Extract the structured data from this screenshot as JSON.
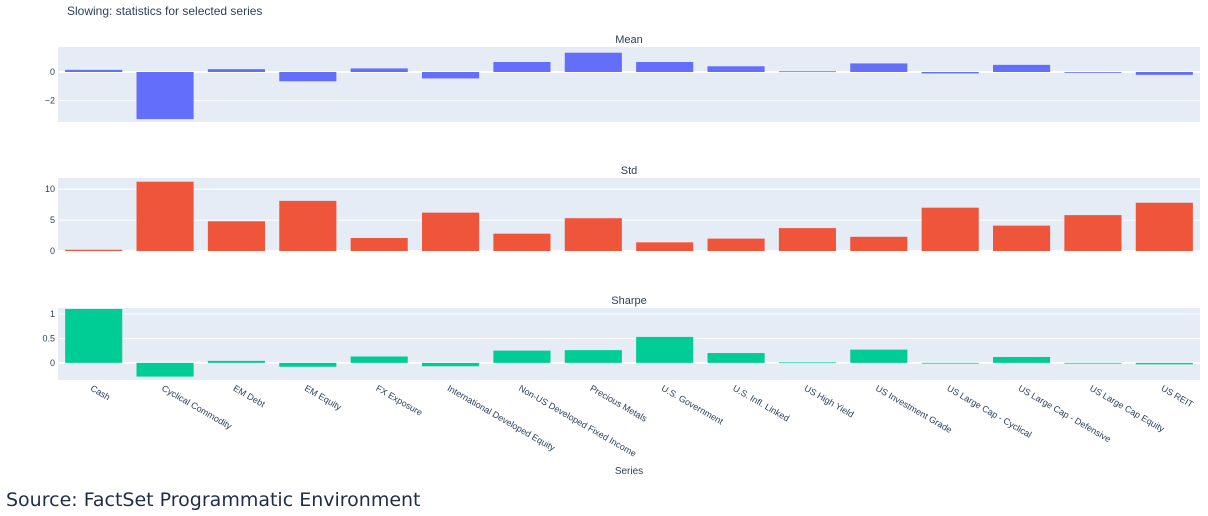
{
  "figure": {
    "title": "Slowing: statistics for selected series",
    "source": "Source: FactSet Programmatic Environment"
  },
  "colors": {
    "mean": "#636efa",
    "std": "#ef553b",
    "sharpe": "#00cc96",
    "plot_bg": "#e5ecf6",
    "text": "#2a3f5f"
  },
  "chart_data": {
    "type": "bar",
    "layout": "3 stacked subplots sharing x-axis",
    "categories": [
      "Cash",
      "Cyclical Commodity",
      "EM Debt",
      "EM Equity",
      "FX Exposure",
      "International Developed Equity",
      "Non-US Developed Fixed Income",
      "Precious Metals",
      "U.S. Government",
      "U.S. Infl. Linked",
      "US High Yield",
      "US Investment Grade",
      "US Large Cap - Cyclical",
      "US Large Cap - Defensive",
      "US Large Cap Equity",
      "US REIT"
    ],
    "xlabel": "Series",
    "grid": true,
    "legend": "none",
    "subplots": [
      {
        "key": "mean",
        "title": "Mean",
        "values": [
          0.15,
          -3.3,
          0.2,
          -0.65,
          0.25,
          -0.45,
          0.7,
          1.35,
          0.7,
          0.4,
          0.05,
          0.6,
          -0.1,
          0.5,
          -0.05,
          -0.2
        ],
        "ylim": [
          -3.5,
          1.75
        ],
        "ticks": [
          -2,
          0
        ],
        "tick_labels": [
          "−2",
          "0"
        ]
      },
      {
        "key": "std",
        "title": "Std",
        "values": [
          0.2,
          11.2,
          4.8,
          8.1,
          2.1,
          6.2,
          2.8,
          5.3,
          1.4,
          2.0,
          3.7,
          2.3,
          7.0,
          4.1,
          5.8,
          7.8
        ],
        "ylim": [
          0,
          11.8
        ],
        "ticks": [
          0,
          5,
          10
        ],
        "tick_labels": [
          "0",
          "5",
          "10"
        ]
      },
      {
        "key": "sharpe",
        "title": "Sharpe",
        "values": [
          1.1,
          -0.28,
          0.04,
          -0.08,
          0.13,
          -0.07,
          0.25,
          0.26,
          0.53,
          0.2,
          0.01,
          0.27,
          -0.01,
          0.12,
          -0.01,
          -0.03
        ],
        "ylim": [
          -0.35,
          1.12
        ],
        "ticks": [
          0,
          0.5,
          1
        ],
        "tick_labels": [
          "0",
          "0.5",
          "1"
        ]
      }
    ]
  }
}
